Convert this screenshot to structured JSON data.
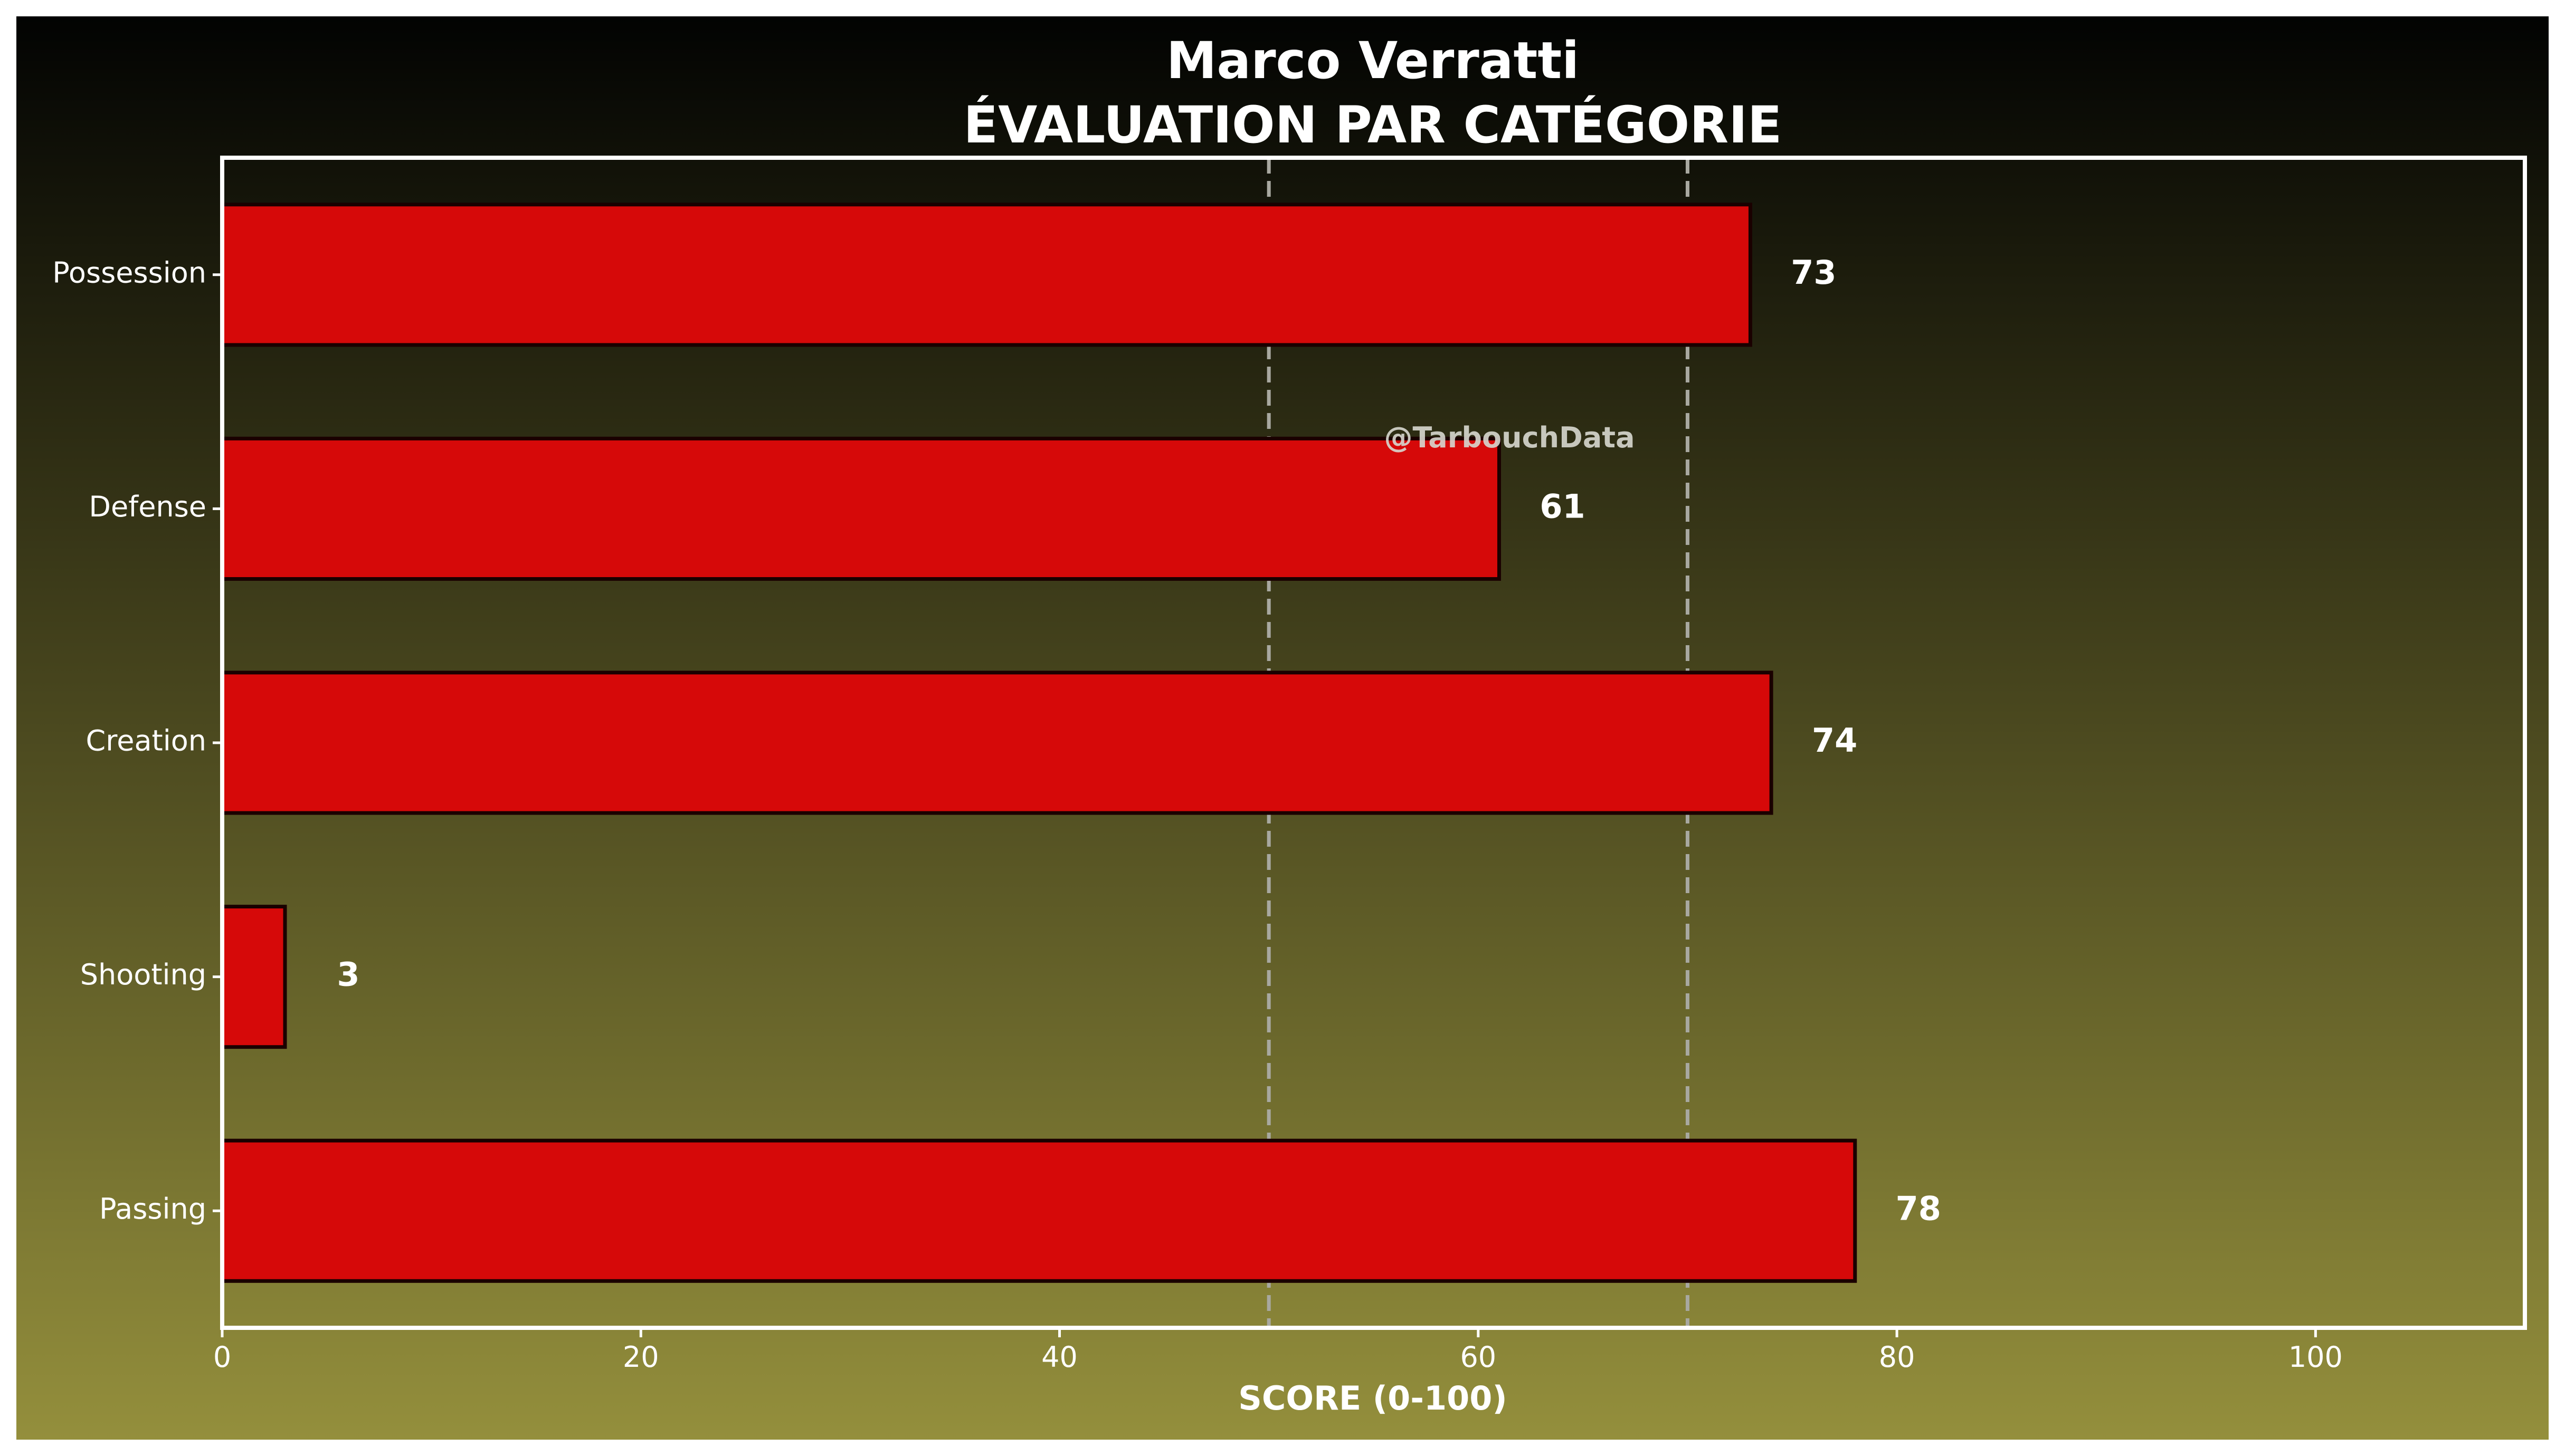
{
  "chart_data": {
    "type": "bar",
    "orientation": "horizontal",
    "title": "Marco Verratti",
    "subtitle": "ÉVALUATION PAR CATÉGORIE",
    "xlabel": "SCORE (0-100)",
    "ylabel": "",
    "xlim": [
      0,
      110
    ],
    "xticks": [
      0,
      20,
      40,
      60,
      80,
      100
    ],
    "categories": [
      "Possession",
      "Defense",
      "Creation",
      "Shooting",
      "Passing"
    ],
    "values": [
      73,
      61,
      74,
      3,
      78
    ],
    "data_labels": [
      "73",
      "61",
      "74",
      "3",
      "78"
    ],
    "reference_lines": [
      50,
      70
    ],
    "watermark": "@TarbouchData",
    "grid": false,
    "legend": "none",
    "colors": {
      "background_top": "#020302",
      "background_bottom": "#948f3c",
      "bar_fill": "#d60909",
      "bar_edge": "#1a0000",
      "reference_line": "#a8a8a0",
      "text": "#ffffff",
      "watermark": "#d8d8d0",
      "frame": "#ffffff"
    }
  }
}
